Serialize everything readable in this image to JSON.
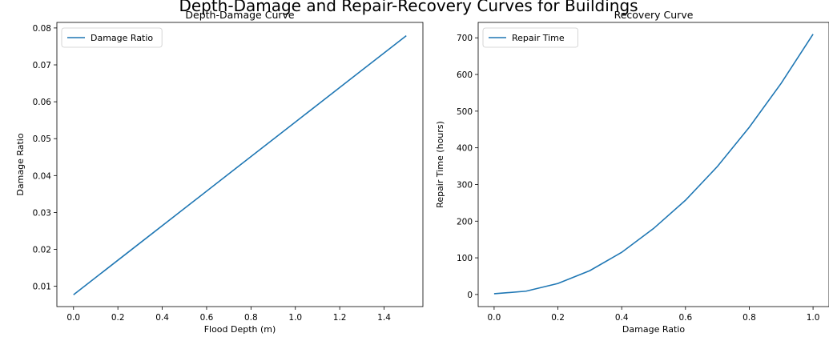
{
  "figure": {
    "suptitle": "Depth-Damage and Repair-Recovery Curves for Buildings",
    "line_color": "#1f77b4"
  },
  "chart_data": [
    {
      "type": "line",
      "title": "Depth-Damage Curve",
      "xlabel": "Flood Depth (m)",
      "ylabel": "Damage Ratio",
      "xlim": [
        -0.075,
        1.575
      ],
      "ylim": [
        0.0045,
        0.0815
      ],
      "xticks": [
        0.0,
        0.2,
        0.4,
        0.6,
        0.8,
        1.0,
        1.2,
        1.4
      ],
      "xticklabels": [
        "0.0",
        "0.2",
        "0.4",
        "0.6",
        "0.8",
        "1.0",
        "1.2",
        "1.4"
      ],
      "yticks": [
        0.01,
        0.02,
        0.03,
        0.04,
        0.05,
        0.06,
        0.07,
        0.08
      ],
      "yticklabels": [
        "0.01",
        "0.02",
        "0.03",
        "0.04",
        "0.05",
        "0.06",
        "0.07",
        "0.08"
      ],
      "grid": false,
      "legend": "upper left",
      "series": [
        {
          "name": "Damage Ratio",
          "x": [
            0.0,
            0.25,
            0.5,
            0.75,
            1.0,
            1.25,
            1.5
          ],
          "y": [
            0.0077,
            0.0194,
            0.0311,
            0.0428,
            0.0545,
            0.0662,
            0.0779
          ]
        }
      ]
    },
    {
      "type": "line",
      "title": "Recovery Curve",
      "xlabel": "Damage Ratio",
      "ylabel": "Repair Time (hours)",
      "xlim": [
        -0.05,
        1.05
      ],
      "ylim": [
        -33,
        742
      ],
      "xticks": [
        0.0,
        0.2,
        0.4,
        0.6,
        0.8,
        1.0
      ],
      "xticklabels": [
        "0.0",
        "0.2",
        "0.4",
        "0.6",
        "0.8",
        "1.0"
      ],
      "yticks": [
        0,
        100,
        200,
        300,
        400,
        500,
        600,
        700
      ],
      "yticklabels": [
        "0",
        "100",
        "200",
        "300",
        "400",
        "500",
        "600",
        "700"
      ],
      "grid": false,
      "legend": "upper left",
      "series": [
        {
          "name": "Repair Time",
          "x": [
            0.0,
            0.1,
            0.2,
            0.3,
            0.4,
            0.5,
            0.6,
            0.7,
            0.8,
            0.9,
            1.0
          ],
          "y": [
            2,
            9,
            30,
            65,
            115,
            180,
            257,
            349,
            456,
            576,
            710
          ]
        }
      ]
    }
  ]
}
